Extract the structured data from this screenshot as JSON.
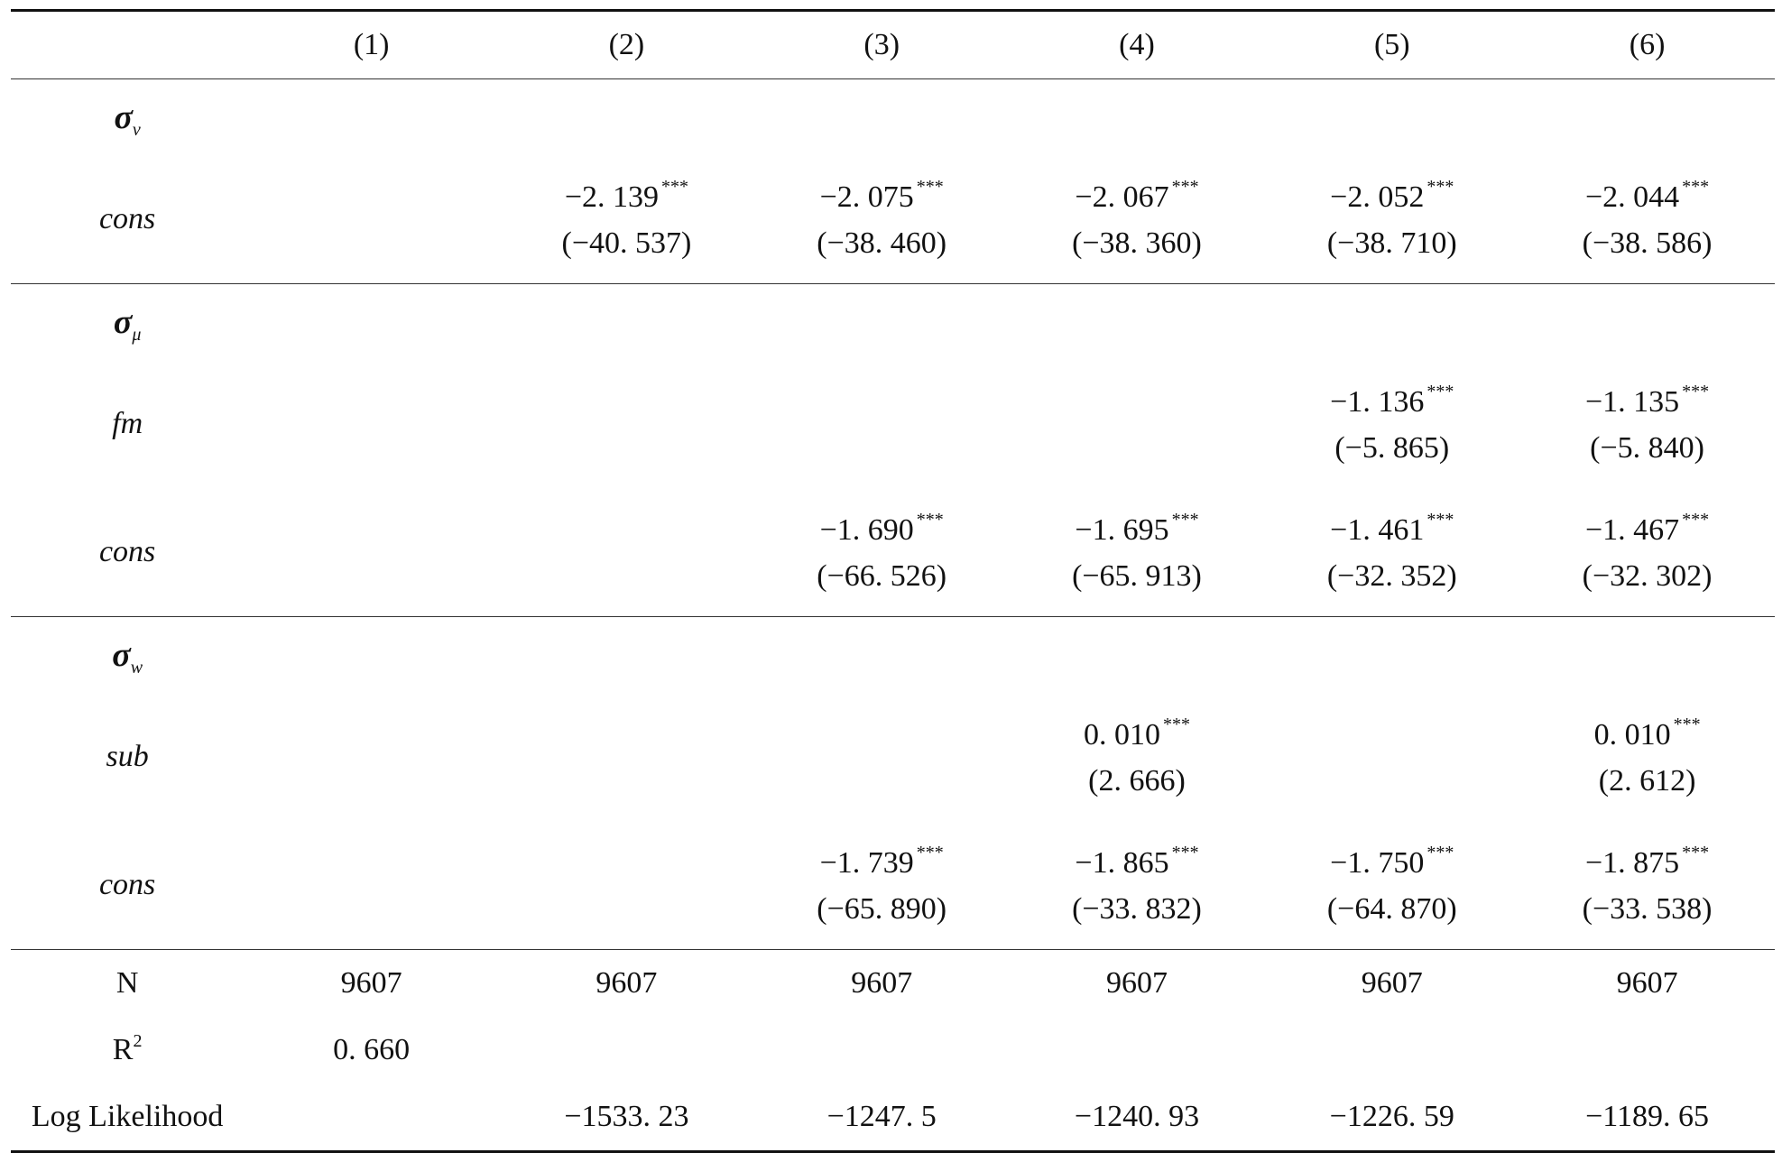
{
  "columns": [
    "(1)",
    "(2)",
    "(3)",
    "(4)",
    "(5)",
    "(6)"
  ],
  "sections": [
    {
      "sigma_symbol": "σ",
      "sigma_sub": "ν",
      "rows": [
        {
          "label": "cons",
          "cells": [
            null,
            {
              "coef": "−2. 139",
              "stars": "***",
              "t": "(−40. 537)"
            },
            {
              "coef": "−2. 075",
              "stars": "***",
              "t": "(−38. 460)"
            },
            {
              "coef": "−2. 067",
              "stars": "***",
              "t": "(−38. 360)"
            },
            {
              "coef": "−2. 052",
              "stars": "***",
              "t": "(−38. 710)"
            },
            {
              "coef": "−2. 044",
              "stars": "***",
              "t": "(−38. 586)"
            }
          ]
        }
      ]
    },
    {
      "sigma_symbol": "σ",
      "sigma_sub": "μ",
      "rows": [
        {
          "label": "fm",
          "cells": [
            null,
            null,
            null,
            null,
            {
              "coef": "−1. 136",
              "stars": "***",
              "t": "(−5. 865)"
            },
            {
              "coef": "−1. 135",
              "stars": "***",
              "t": "(−5. 840)"
            }
          ]
        },
        {
          "label": "cons",
          "cells": [
            null,
            null,
            {
              "coef": "−1. 690",
              "stars": "***",
              "t": "(−66. 526)"
            },
            {
              "coef": "−1. 695",
              "stars": "***",
              "t": "(−65. 913)"
            },
            {
              "coef": "−1. 461",
              "stars": "***",
              "t": "(−32. 352)"
            },
            {
              "coef": "−1. 467",
              "stars": "***",
              "t": "(−32. 302)"
            }
          ]
        }
      ]
    },
    {
      "sigma_symbol": "σ",
      "sigma_sub": "w",
      "rows": [
        {
          "label": "sub",
          "cells": [
            null,
            null,
            null,
            {
              "coef": "0. 010",
              "stars": "***",
              "t": "(2. 666)"
            },
            null,
            {
              "coef": "0. 010",
              "stars": "***",
              "t": "(2. 612)"
            }
          ]
        },
        {
          "label": "cons",
          "cells": [
            null,
            null,
            {
              "coef": "−1. 739",
              "stars": "***",
              "t": "(−65. 890)"
            },
            {
              "coef": "−1. 865",
              "stars": "***",
              "t": "(−33. 832)"
            },
            {
              "coef": "−1. 750",
              "stars": "***",
              "t": "(−64. 870)"
            },
            {
              "coef": "−1. 875",
              "stars": "***",
              "t": "(−33. 538)"
            }
          ]
        }
      ]
    }
  ],
  "stats": [
    {
      "label": "N",
      "label_sup": "",
      "values": [
        "9607",
        "9607",
        "9607",
        "9607",
        "9607",
        "9607"
      ]
    },
    {
      "label": "R",
      "label_sup": "2",
      "values": [
        "0. 660",
        "",
        "",
        "",
        "",
        ""
      ]
    },
    {
      "label": "Log Likelihood",
      "label_sup": "",
      "values": [
        "",
        "−1533. 23",
        "−1247. 5",
        "−1240. 93",
        "−1226. 59",
        "−1189. 65"
      ]
    }
  ]
}
